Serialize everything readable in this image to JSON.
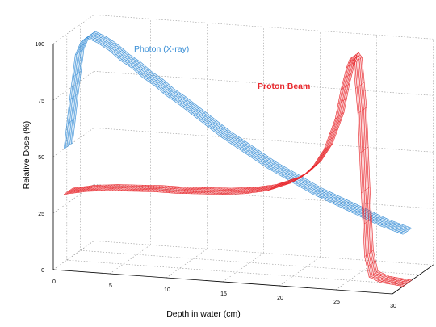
{
  "chart_data": {
    "type": "line",
    "title": "",
    "xlabel": "Depth in water (cm)",
    "ylabel": "Relative Dose (%)",
    "xlim": [
      0,
      30
    ],
    "ylim": [
      0,
      100
    ],
    "x_ticks": [
      0,
      5,
      10,
      15,
      20,
      25,
      30
    ],
    "y_ticks": [
      0,
      25,
      50,
      75,
      100
    ],
    "grid": true,
    "legend": "none",
    "series": [
      {
        "name": "Photon (X-ray)",
        "color": "#3a8fd6",
        "x": [
          0,
          0.5,
          1.0,
          1.5,
          2.0,
          3,
          4,
          5,
          6,
          7,
          8,
          9,
          10,
          12,
          14,
          16,
          18,
          20,
          22,
          24,
          26,
          28,
          30
        ],
        "y": [
          50,
          72,
          92,
          98,
          100,
          98,
          95,
          91,
          88,
          84,
          81,
          77,
          74,
          67,
          60,
          54,
          48,
          43,
          38,
          34,
          30,
          26,
          23
        ]
      },
      {
        "name": "Proton Beam",
        "color": "#e8282d",
        "x": [
          0,
          2,
          4,
          6,
          8,
          10,
          12,
          14,
          16,
          18,
          19,
          20,
          21,
          22,
          23,
          24,
          24.5,
          25,
          25.3,
          25.6,
          26,
          26.3,
          26.6,
          27,
          28,
          30
        ],
        "y": [
          30,
          32,
          33,
          33.5,
          34,
          34,
          34.5,
          35,
          36,
          38,
          40,
          42,
          45,
          50,
          58,
          72,
          85,
          95,
          99,
          97,
          75,
          40,
          12,
          3,
          1,
          0
        ]
      }
    ]
  }
}
